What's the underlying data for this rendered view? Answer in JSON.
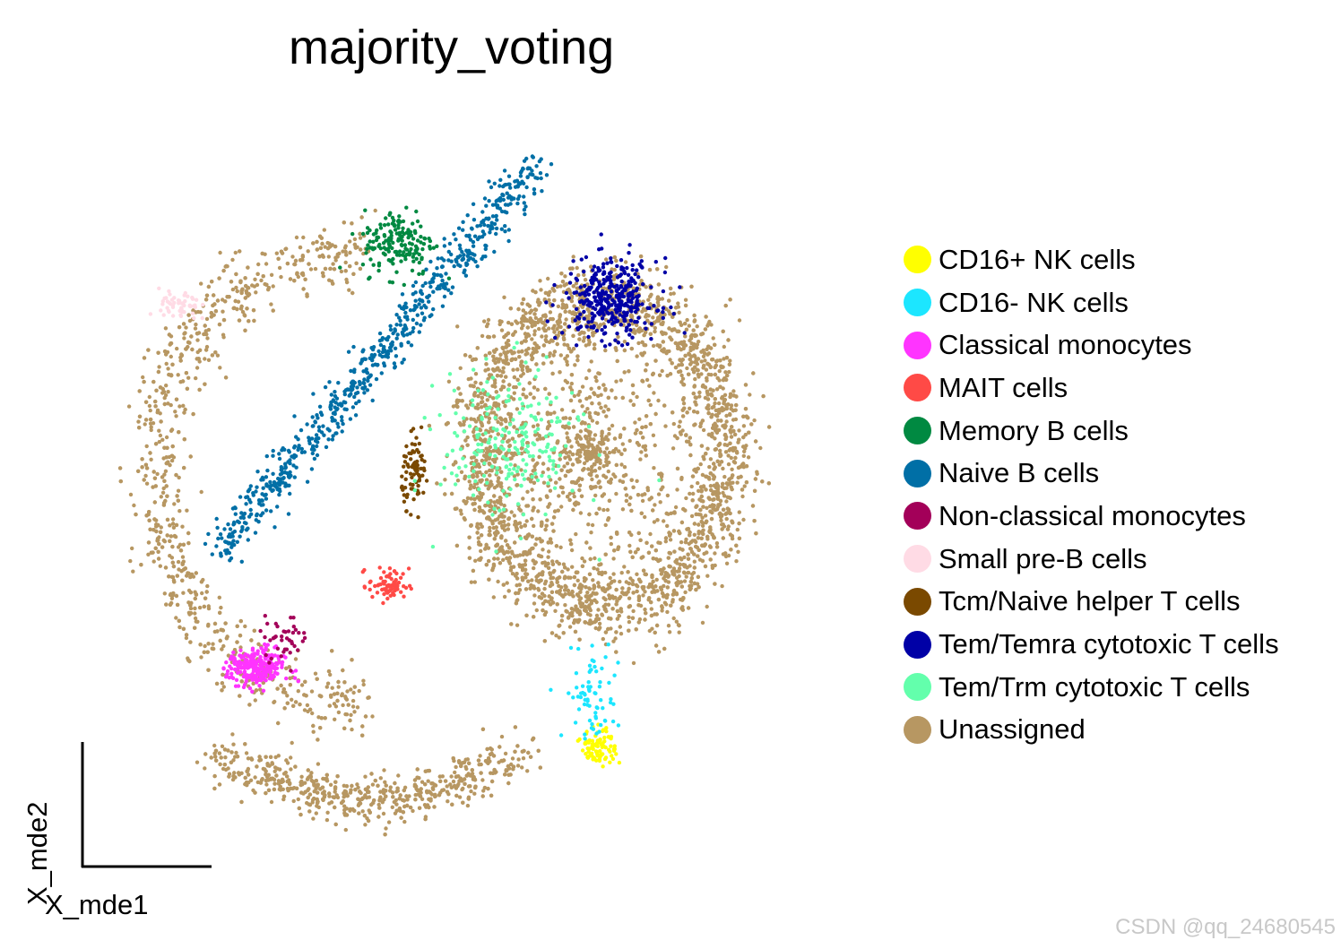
{
  "chart_data": {
    "type": "scatter",
    "title": "majority_voting",
    "xlabel": "X_mde1",
    "ylabel": "X_mde2",
    "xlim": [
      0,
      100
    ],
    "ylim": [
      0,
      100
    ],
    "grid": false,
    "legend_position": "right",
    "series": [
      {
        "name": "CD16+ NK cells",
        "color": "#ffff00",
        "center": [
          67.5,
          16
        ],
        "spread": [
          1.1,
          1.2
        ],
        "count": 90
      },
      {
        "name": "CD16- NK cells",
        "color": "#1ce6ff",
        "center": [
          66.5,
          23
        ],
        "spread": [
          1.8,
          3.2
        ],
        "count": 70
      },
      {
        "name": "Classical monocytes",
        "color": "#ff34ff",
        "center": [
          23,
          26.5
        ],
        "spread": [
          1.8,
          1.3
        ],
        "count": 250
      },
      {
        "name": "MAIT cells",
        "color": "#ff4a46",
        "center": [
          40.2,
          37.5
        ],
        "spread": [
          1.3,
          1.1
        ],
        "count": 70
      },
      {
        "name": "Memory B cells",
        "color": "#008941",
        "center": [
          41.5,
          83
        ],
        "spread": [
          2.3,
          2.2
        ],
        "count": 170
      },
      {
        "name": "Naive B cells",
        "color": "#006fa6",
        "center": [
          37,
          70
        ],
        "spread": [
          9,
          16
        ],
        "count": 700
      },
      {
        "name": "Non-classical monocytes",
        "color": "#a30059",
        "center": [
          26.5,
          30.5
        ],
        "spread": [
          1.6,
          1.4
        ],
        "count": 40
      },
      {
        "name": "Small pre-B cells",
        "color": "#ffdbe5",
        "center": [
          13,
          74.5
        ],
        "spread": [
          1.3,
          1.1
        ],
        "count": 55
      },
      {
        "name": "Tcm/Naive helper T cells",
        "color": "#7a4900",
        "center": [
          43.7,
          52.5
        ],
        "spread": [
          0.9,
          2.2
        ],
        "count": 80
      },
      {
        "name": "Tem/Temra cytotoxic T cells",
        "color": "#0000a6",
        "center": [
          69,
          75.5
        ],
        "spread": [
          3,
          2.6
        ],
        "count": 350
      },
      {
        "name": "Tem/Trm cytotoxic T cells",
        "color": "#63ffac",
        "center": [
          56,
          56
        ],
        "spread": [
          4.5,
          5
        ],
        "count": 220
      },
      {
        "name": "Unassigned",
        "color": "#b79762",
        "center": [
          55,
          50
        ],
        "spread": [
          30,
          30
        ],
        "count": 6200
      }
    ]
  },
  "watermark": "CSDN @qq_24680545"
}
